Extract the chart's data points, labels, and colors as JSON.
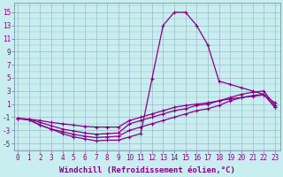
{
  "xlabel": "Windchill (Refroidissement éolien,°C)",
  "x_values": [
    0,
    1,
    2,
    3,
    4,
    5,
    6,
    7,
    8,
    9,
    10,
    11,
    12,
    13,
    14,
    15,
    16,
    17,
    18,
    19,
    20,
    21,
    22,
    23
  ],
  "line1": [
    -1.2,
    -1.3,
    -1.5,
    -1.8,
    -2.0,
    -2.2,
    -2.4,
    -2.5,
    -2.5,
    -2.5,
    -1.5,
    -1.0,
    -0.5,
    0.0,
    0.5,
    0.8,
    1.0,
    1.2,
    1.5,
    1.8,
    2.0,
    2.2,
    2.4,
    1.2
  ],
  "line2": [
    -1.2,
    -1.3,
    -1.8,
    -2.3,
    -2.8,
    -3.1,
    -3.4,
    -3.6,
    -3.5,
    -3.4,
    -2.0,
    -1.5,
    -1.0,
    -0.5,
    0.0,
    0.3,
    0.8,
    1.0,
    1.5,
    2.0,
    2.5,
    2.8,
    3.0,
    0.8
  ],
  "line3": [
    -1.2,
    -1.4,
    -2.2,
    -2.8,
    -3.2,
    -3.6,
    -3.9,
    -4.1,
    -4.0,
    -3.9,
    -3.0,
    -2.5,
    -2.0,
    -1.5,
    -1.0,
    -0.5,
    0.0,
    0.3,
    0.8,
    1.5,
    2.0,
    2.3,
    2.5,
    0.5
  ],
  "line4": [
    -1.2,
    -1.4,
    -2.2,
    -2.8,
    -3.5,
    -4.0,
    -4.3,
    -4.6,
    -4.5,
    -4.5,
    -4.0,
    -3.5,
    4.8,
    13.0,
    15.0,
    15.0,
    13.0,
    10.0,
    4.5,
    4.0,
    3.5,
    3.0,
    2.5,
    0.5
  ],
  "bg_color": "#c8eef0",
  "line_color": "#880088",
  "grid_color": "#a0b8c8",
  "yticks": [
    -5,
    -3,
    -1,
    1,
    3,
    5,
    7,
    9,
    11,
    13,
    15
  ],
  "xticks": [
    0,
    1,
    2,
    3,
    4,
    5,
    6,
    7,
    8,
    9,
    10,
    11,
    12,
    13,
    14,
    15,
    16,
    17,
    18,
    19,
    20,
    21,
    22,
    23
  ],
  "ylim": [
    -6,
    16.5
  ],
  "xlim": [
    -0.3,
    23.5
  ],
  "marker": "+",
  "markersize": 3.5,
  "linewidth": 0.9,
  "xlabel_fontsize": 6.5,
  "tick_fontsize": 5.5
}
